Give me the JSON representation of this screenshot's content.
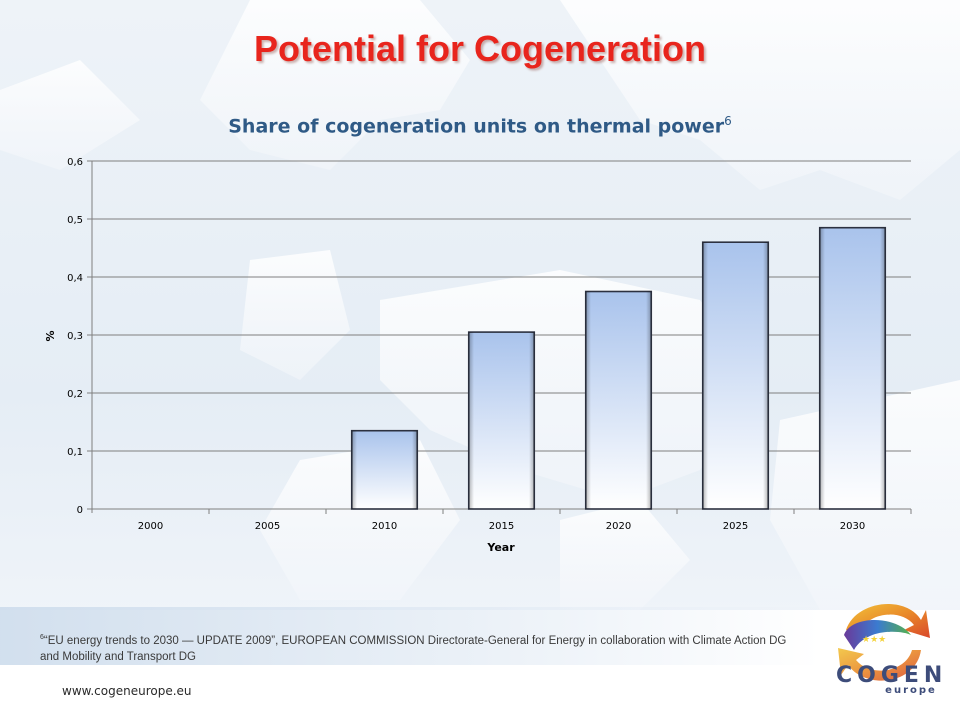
{
  "page": {
    "title": "Potential for Cogeneration",
    "footnote_marker": "6",
    "footnote_text": "“EU energy trends to 2030 — UPDATE 2009”, EUROPEAN COMMISSION Directorate-General for Energy in collaboration with Climate Action DG and Mobility and Transport DG",
    "website": "www.cogeneurope.eu",
    "logo_main": "COGEN",
    "logo_sub": "europe"
  },
  "colors": {
    "title": "#e8251d",
    "chart_title": "#2f5a86",
    "bar_top": "#a9c3ec",
    "bar_bottom": "#ffffff",
    "bar_edge": "#2c3140",
    "grid": "#7f7f7f"
  },
  "chart_data": {
    "type": "bar",
    "title": "Share of cogeneration units on thermal power",
    "title_superscript": "6",
    "xlabel": "Year",
    "ylabel": "%",
    "categories": [
      "2000",
      "2005",
      "2010",
      "2015",
      "2020",
      "2025",
      "2030"
    ],
    "values": [
      0,
      0,
      0.135,
      0.305,
      0.375,
      0.46,
      0.485
    ],
    "ylim": [
      0,
      0.6
    ],
    "yticks": [
      "0",
      "0,1",
      "0,2",
      "0,3",
      "0,4",
      "0,5",
      "0,6"
    ],
    "grid": true,
    "legend": false
  }
}
